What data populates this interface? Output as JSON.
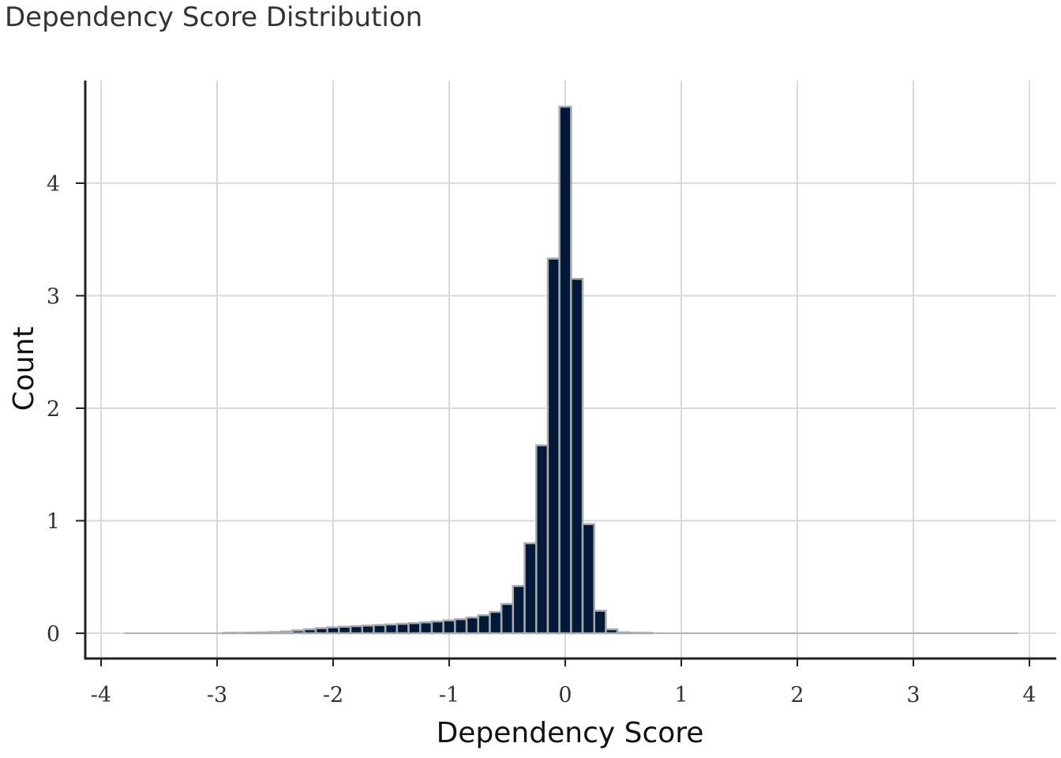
{
  "chart_data": {
    "type": "bar",
    "title": "Dependency Score Distribution",
    "xlabel": "Dependency Score",
    "ylabel": "Count",
    "xlim": [
      -4,
      4
    ],
    "ylim": [
      0,
      4.8
    ],
    "x_ticks": [
      "-4",
      "-3",
      "-2",
      "-1",
      "0",
      "1",
      "2",
      "3",
      "4"
    ],
    "y_ticks": [
      "0",
      "1",
      "2",
      "3",
      "4"
    ],
    "grid": true,
    "legend": "none",
    "bin_width": 0.1,
    "bin_range": [
      -3.8,
      3.9
    ],
    "bins": [
      {
        "x": -2.9,
        "value": 0.002
      },
      {
        "x": -2.8,
        "value": 0.003
      },
      {
        "x": -2.7,
        "value": 0.005
      },
      {
        "x": -2.6,
        "value": 0.007
      },
      {
        "x": -2.5,
        "value": 0.01
      },
      {
        "x": -2.4,
        "value": 0.016
      },
      {
        "x": -2.3,
        "value": 0.025
      },
      {
        "x": -2.2,
        "value": 0.035
      },
      {
        "x": -2.1,
        "value": 0.045
      },
      {
        "x": -2.0,
        "value": 0.052
      },
      {
        "x": -1.9,
        "value": 0.058
      },
      {
        "x": -1.8,
        "value": 0.063
      },
      {
        "x": -1.7,
        "value": 0.068
      },
      {
        "x": -1.6,
        "value": 0.073
      },
      {
        "x": -1.5,
        "value": 0.078
      },
      {
        "x": -1.4,
        "value": 0.084
      },
      {
        "x": -1.3,
        "value": 0.09
      },
      {
        "x": -1.2,
        "value": 0.097
      },
      {
        "x": -1.1,
        "value": 0.105
      },
      {
        "x": -1.0,
        "value": 0.114
      },
      {
        "x": -0.9,
        "value": 0.125
      },
      {
        "x": -0.8,
        "value": 0.14
      },
      {
        "x": -0.7,
        "value": 0.16
      },
      {
        "x": -0.6,
        "value": 0.19
      },
      {
        "x": -0.5,
        "value": 0.26
      },
      {
        "x": -0.4,
        "value": 0.42
      },
      {
        "x": -0.3,
        "value": 0.8
      },
      {
        "x": -0.2,
        "value": 1.67
      },
      {
        "x": -0.1,
        "value": 3.33
      },
      {
        "x": 0.0,
        "value": 4.68
      },
      {
        "x": 0.1,
        "value": 3.15
      },
      {
        "x": 0.2,
        "value": 0.97
      },
      {
        "x": 0.3,
        "value": 0.2
      },
      {
        "x": 0.4,
        "value": 0.035
      },
      {
        "x": 0.5,
        "value": 0.008
      },
      {
        "x": 0.6,
        "value": 0.003
      },
      {
        "x": 0.7,
        "value": 0.002
      }
    ],
    "colors": {
      "bar_fill": "#03193a",
      "bar_stroke": "#aaaaaa",
      "grid": "#d9d9d9",
      "axis": "#222222",
      "baseline": "#b3b3b3"
    }
  }
}
